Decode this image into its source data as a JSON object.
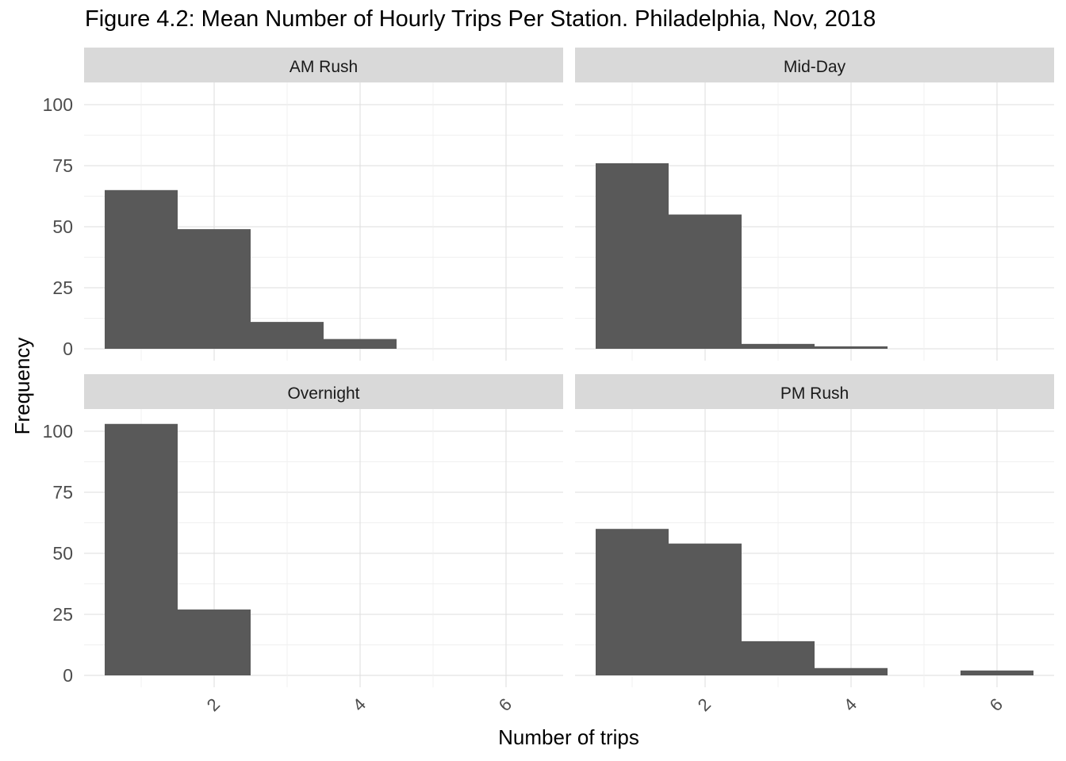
{
  "chart_data": {
    "type": "bar",
    "title": "Figure 4.2: Mean Number of Hourly Trips Per Station. Philadelphia, Nov, 2018",
    "xlabel": "Number of trips",
    "ylabel": "Frequency",
    "xlim": [
      0.3,
      6.5
    ],
    "ylim": [
      0,
      120
    ],
    "x_ticks": [
      2,
      4,
      6
    ],
    "y_ticks": [
      0,
      25,
      50,
      75,
      100
    ],
    "bin_width": 1,
    "bar_color": "#595959",
    "strip_color": "#d9d9d9",
    "grid": true,
    "panels": [
      {
        "name": "AM Rush",
        "bins": [
          1,
          2,
          3,
          4,
          5,
          6
        ],
        "values": [
          65,
          49,
          11,
          4,
          0,
          0
        ]
      },
      {
        "name": "Mid-Day",
        "bins": [
          1,
          2,
          3,
          4,
          5,
          6
        ],
        "values": [
          76,
          55,
          2,
          1,
          0,
          0
        ]
      },
      {
        "name": "Overnight",
        "bins": [
          1,
          2,
          3,
          4,
          5,
          6
        ],
        "values": [
          103,
          27,
          0,
          0,
          0,
          0
        ]
      },
      {
        "name": "PM Rush",
        "bins": [
          1,
          2,
          3,
          4,
          5,
          6
        ],
        "values": [
          60,
          54,
          14,
          3,
          0,
          2
        ]
      }
    ]
  }
}
